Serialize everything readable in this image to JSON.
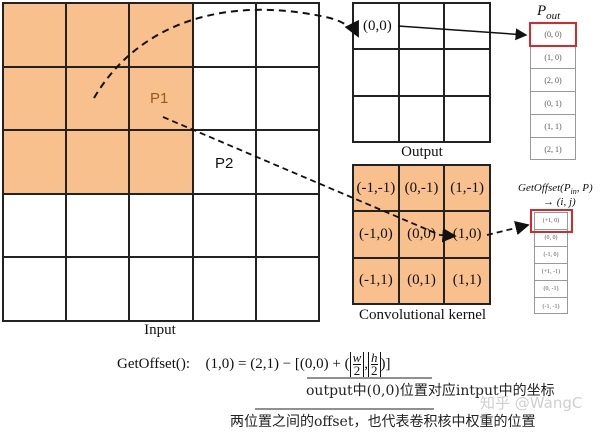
{
  "input_grid": {
    "label": "Input",
    "rows": 5,
    "cols": 5,
    "highlighted": [
      [
        1,
        1,
        1,
        0,
        0
      ],
      [
        1,
        1,
        1,
        0,
        0
      ],
      [
        1,
        1,
        1,
        0,
        0
      ],
      [
        0,
        0,
        0,
        0,
        0
      ],
      [
        0,
        0,
        0,
        0,
        0
      ]
    ],
    "p1_label": "P1",
    "p2_label": "P2"
  },
  "output_grid": {
    "label": "Output",
    "rows": 3,
    "cols": 3,
    "origin_label": "(0,0)"
  },
  "kernel_grid": {
    "label": "Convolutional kernel",
    "cells": [
      "(-1,-1)",
      "(0,-1)",
      "(1,-1)",
      "(-1,0)",
      "(0,0)",
      "(1,0)",
      "(-1,1)",
      "(0,1)",
      "(1,1)"
    ]
  },
  "p_out_list": {
    "title": "P",
    "title_sub": "out",
    "items": [
      "(0, 0)",
      "(1, 0)",
      "(2, 0)",
      "(0, 1)",
      "(1, 1)",
      "(2, 1)"
    ],
    "highlighted_index": 0
  },
  "offset_list": {
    "title_line1": "GetOffset(P",
    "title_sub": "in",
    "title_line1_end": ", P)",
    "title_line2": "→ (i, j)",
    "items": [
      "(+1, 0)",
      "(0, 0)",
      "(-1, 0)",
      "(+1, -1)",
      "(0, -1)",
      "(-1, -1)"
    ],
    "highlighted_index": 0
  },
  "formula": {
    "prefix": "GetOffset():",
    "expression": "(1,0) = (2,1) − [(0,0) + (",
    "w": "w",
    "h": "h",
    "two": "2",
    "suffix": ")]"
  },
  "annotations": {
    "line1": "output中(0,0)位置对应intput中的坐标",
    "line2": "两位置之间的offset，也代表卷积核中权重的位置"
  },
  "watermark": "知乎 @WangC",
  "colors": {
    "kernel_fill": "#f7c08c",
    "highlight": "#d62a2a",
    "grid_line": "#222222"
  }
}
